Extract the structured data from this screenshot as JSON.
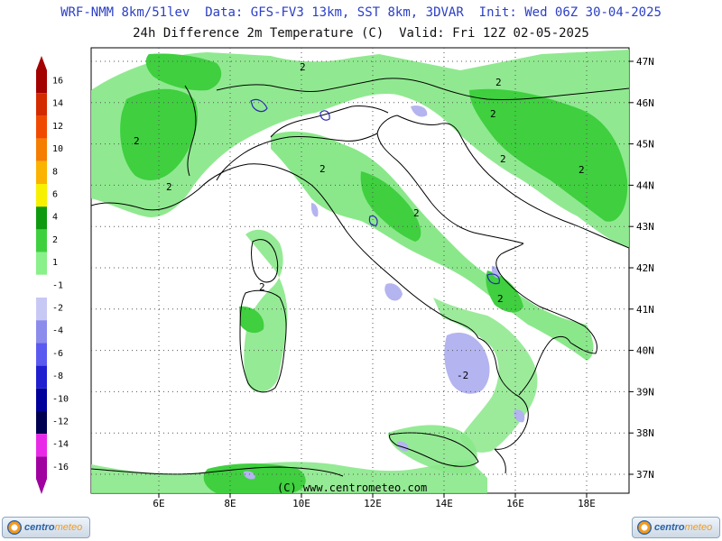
{
  "header": {
    "line1": "WRF-NMM 8km/51lev  Data: GFS-FV3 13km, SST 8km, 3DVAR  Init: Wed 06Z 30-04-2025",
    "line2": "24h Difference 2m Temperature (C)  Valid: Fri 12Z 02-05-2025"
  },
  "legend": {
    "labels": [
      "16",
      "14",
      "12",
      "10",
      "8",
      "6",
      "4",
      "2",
      "1",
      "-1",
      "-2",
      "-4",
      "-6",
      "-8",
      "-10",
      "-12",
      "-14",
      "-16"
    ],
    "colors": [
      "#a30000",
      "#d32a00",
      "#f04a00",
      "#f57d00",
      "#fab300",
      "#f7f000",
      "#0e9a0e",
      "#3fd03f",
      "#8af08a",
      "#ffffff",
      "#c8c8f5",
      "#8c8cec",
      "#5a5af0",
      "#1f1fd0",
      "#00009a",
      "#000050",
      "#e82ae8",
      "#a000a0"
    ]
  },
  "map": {
    "lat_labels": [
      "47N",
      "46N",
      "45N",
      "44N",
      "43N",
      "42N",
      "41N",
      "40N",
      "39N",
      "38N",
      "37N"
    ],
    "lon_labels": [
      "6E",
      "8E",
      "10E",
      "12E",
      "14E",
      "16E",
      "18E"
    ],
    "contour_labels": [
      "2",
      "2",
      "2",
      "2",
      "2",
      "2",
      "2",
      "2",
      "2",
      "2",
      "2",
      "-2"
    ],
    "copyright": "(C) www.centrometeo.com",
    "colors": {
      "border": "#000000",
      "pos": "#8ae88a",
      "pos_strong": "#3fcf3f",
      "neg": "#b4b4f0"
    }
  },
  "logos": {
    "left_a": "centro",
    "left_b": "meteo",
    "right_a": "centro",
    "right_b": "meteo"
  }
}
